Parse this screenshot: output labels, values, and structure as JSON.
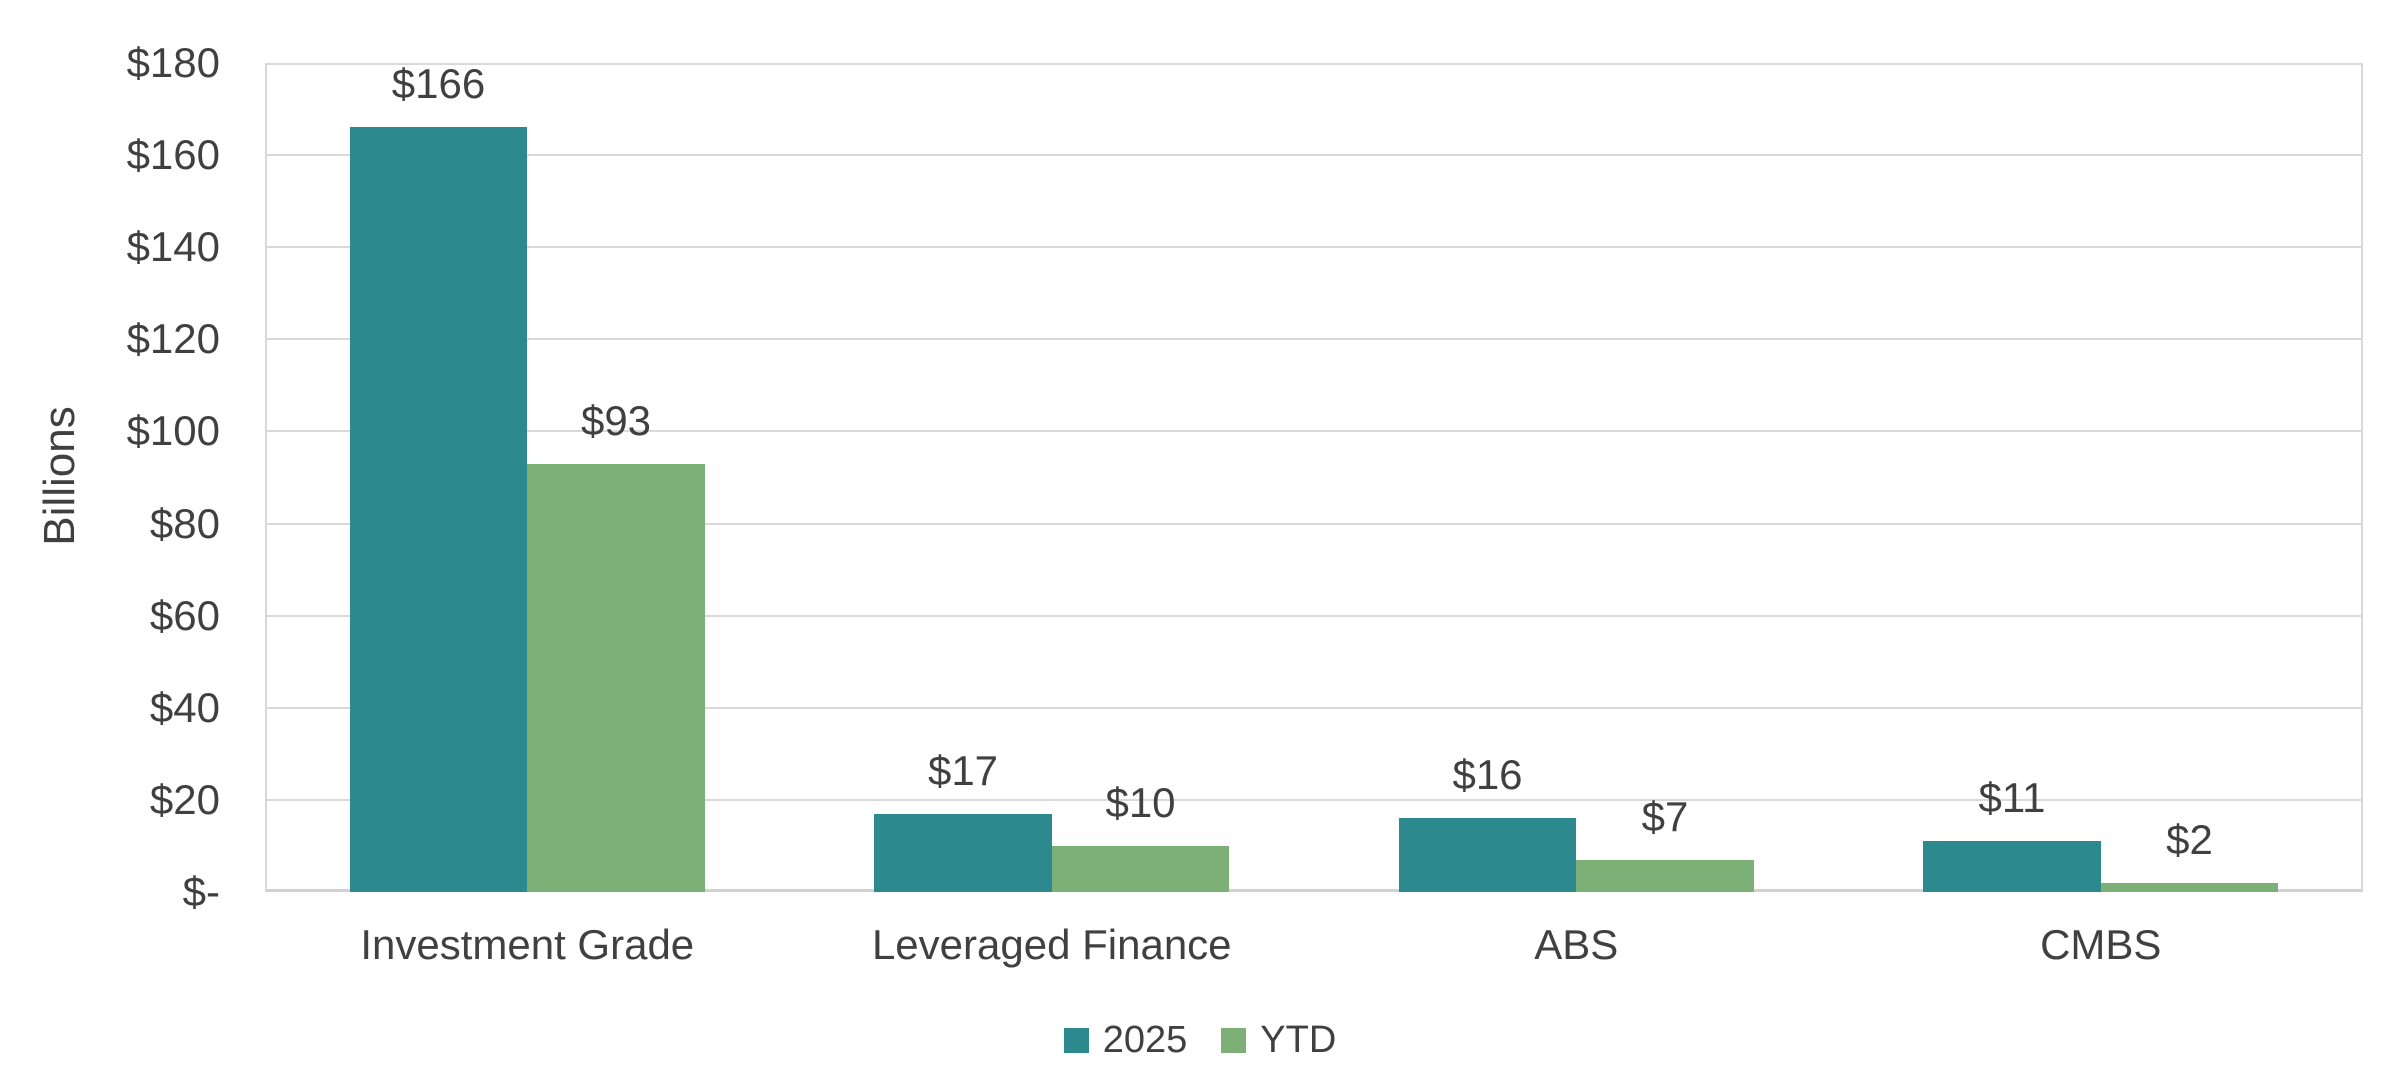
{
  "chart_data": {
    "type": "bar",
    "categories": [
      "Investment Grade",
      "Leveraged Finance",
      "ABS",
      "CMBS"
    ],
    "series": [
      {
        "name": "2025",
        "color": "#2c8a8f",
        "values": [
          166,
          17,
          16,
          11
        ],
        "labels": [
          "$166",
          "$17",
          "$16",
          "$11"
        ]
      },
      {
        "name": "YTD",
        "color": "#7db077",
        "values": [
          93,
          10,
          7,
          2
        ],
        "labels": [
          "$93",
          "$10",
          "$7",
          "$2"
        ]
      }
    ],
    "title": "",
    "xlabel": "",
    "ylabel": "Billions",
    "y_ticks": [
      "$180",
      "$160",
      "$140",
      "$120",
      "$100",
      "$80",
      "$60",
      "$40",
      "$20",
      "$-"
    ],
    "ylim": [
      0,
      180
    ],
    "y_tick_step": 20,
    "grid": true,
    "legend_position": "bottom-center",
    "colors": {
      "text": "#404040",
      "gridline": "#d9d9d9",
      "background": "#ffffff"
    }
  }
}
